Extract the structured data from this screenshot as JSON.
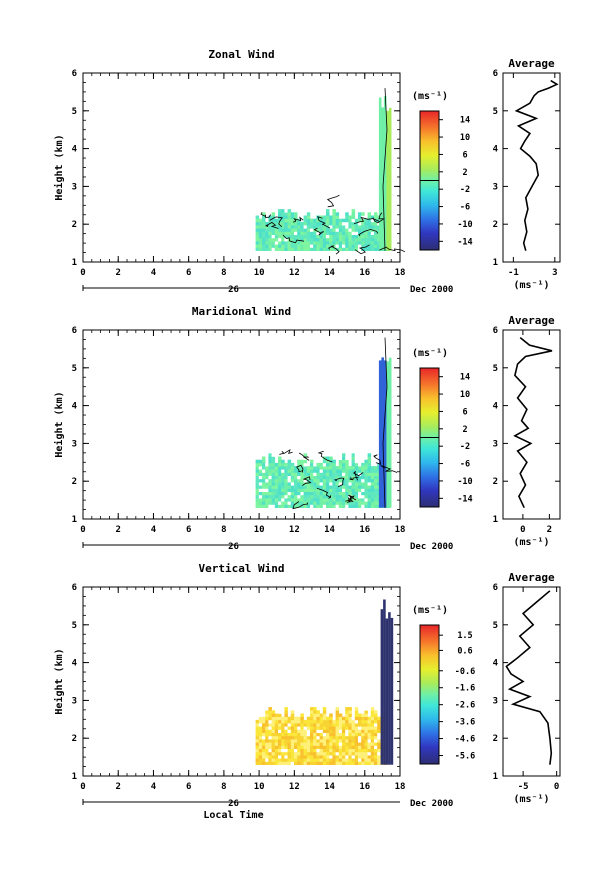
{
  "chart_data": [
    {
      "type": "heatmap",
      "title": "Zonal Wind",
      "xlabel": "",
      "ylabel": "Height (km)",
      "xlim": [
        0,
        18
      ],
      "ylim": [
        1,
        6
      ],
      "xticks": [
        0,
        2,
        4,
        6,
        8,
        10,
        12,
        14,
        16,
        18
      ],
      "yticks": [
        1,
        2,
        3,
        4,
        5,
        6
      ],
      "date_label": "Dec 2000",
      "day_label": "26",
      "colorbar": {
        "unit": "(ms⁻¹)",
        "vmin": -16,
        "vmax": 16,
        "ticks": [
          14,
          10,
          6,
          2,
          -2,
          -6,
          -10,
          -14
        ]
      },
      "data_region": {
        "time_start": 9.8,
        "time_end": 17.4,
        "height_bottom": 1.3,
        "height_top": 2.5
      },
      "tall_column": {
        "time_start": 16.8,
        "time_end": 17.5,
        "height_top": 5.6
      },
      "average": {
        "title": "Average",
        "xlabel": "(ms⁻¹)",
        "xlim": [
          -2,
          3.5
        ],
        "xticks": [
          -1,
          3
        ],
        "heights": [
          1.3,
          1.5,
          1.8,
          2.1,
          2.4,
          2.7,
          3.0,
          3.3,
          3.6,
          3.8,
          4.0,
          4.2,
          4.4,
          4.6,
          4.8,
          5.0,
          5.2,
          5.4,
          5.5,
          5.6,
          5.7,
          5.8
        ],
        "values": [
          0.2,
          0.0,
          0.3,
          0.1,
          0.4,
          0.2,
          0.8,
          1.4,
          1.2,
          0.6,
          -0.3,
          0.1,
          0.6,
          -0.5,
          1.2,
          -0.7,
          0.6,
          1.0,
          1.4,
          2.4,
          3.2,
          2.6
        ]
      }
    },
    {
      "type": "heatmap",
      "title": "Maridional Wind",
      "xlabel": "",
      "ylabel": "Height (km)",
      "xlim": [
        0,
        18
      ],
      "ylim": [
        1,
        6
      ],
      "xticks": [
        0,
        2,
        4,
        6,
        8,
        10,
        12,
        14,
        16,
        18
      ],
      "yticks": [
        1,
        2,
        3,
        4,
        5,
        6
      ],
      "date_label": "Dec 2000",
      "day_label": "26",
      "colorbar": {
        "unit": "(ms⁻¹)",
        "vmin": -16,
        "vmax": 16,
        "ticks": [
          14,
          10,
          6,
          2,
          -2,
          -6,
          -10,
          -14
        ]
      },
      "data_region": {
        "time_start": 9.8,
        "time_end": 17.4,
        "height_bottom": 1.3,
        "height_top": 2.8
      },
      "tall_column": {
        "time_start": 16.8,
        "time_end": 17.5,
        "height_top": 5.8
      },
      "average": {
        "title": "Average",
        "xlabel": "(ms⁻¹)",
        "xlim": [
          -1.5,
          2.8
        ],
        "xticks": [
          0,
          2
        ],
        "heights": [
          1.3,
          1.6,
          1.9,
          2.2,
          2.5,
          2.8,
          3.0,
          3.2,
          3.4,
          3.6,
          3.9,
          4.2,
          4.5,
          4.8,
          5.1,
          5.3,
          5.45,
          5.6,
          5.8
        ],
        "values": [
          0.1,
          -0.3,
          0.2,
          -0.2,
          0.3,
          -0.4,
          0.6,
          -0.6,
          0.4,
          -0.1,
          0.3,
          -0.4,
          0.2,
          -0.6,
          -0.4,
          0.2,
          2.2,
          0.5,
          -0.2
        ]
      }
    },
    {
      "type": "heatmap",
      "title": "Vertical Wind",
      "xlabel": "Local Time",
      "ylabel": "Height (km)",
      "xlim": [
        0,
        18
      ],
      "ylim": [
        1,
        6
      ],
      "xticks": [
        0,
        2,
        4,
        6,
        8,
        10,
        12,
        14,
        16,
        18
      ],
      "yticks": [
        1,
        2,
        3,
        4,
        5,
        6
      ],
      "date_label": "Dec 2000",
      "day_label": "26",
      "colorbar": {
        "unit": "(ms⁻¹)",
        "vmin": -6.1,
        "vmax": 2.1,
        "ticks": [
          1.5,
          0.6,
          -0.6,
          -1.6,
          -2.6,
          -3.6,
          -4.6,
          -5.6
        ]
      },
      "data_region": {
        "time_start": 9.8,
        "time_end": 17.1,
        "height_bottom": 1.3,
        "height_top": 2.9
      },
      "tall_column": {
        "time_start": 16.9,
        "time_end": 17.5,
        "height_top": 6.0
      },
      "average": {
        "title": "Average",
        "xlabel": "(ms⁻¹)",
        "xlim": [
          -8,
          0.5
        ],
        "xticks": [
          -5,
          0
        ],
        "heights": [
          1.3,
          1.6,
          2.0,
          2.4,
          2.7,
          2.9,
          3.1,
          3.3,
          3.5,
          3.7,
          3.9,
          4.1,
          4.4,
          4.7,
          5.0,
          5.3,
          5.6,
          5.9
        ],
        "values": [
          -1,
          -0.8,
          -1,
          -1.3,
          -2.5,
          -6.5,
          -4,
          -7,
          -5,
          -6.8,
          -7.5,
          -6,
          -4,
          -5.5,
          -3.5,
          -5,
          -3,
          -1
        ]
      }
    }
  ]
}
